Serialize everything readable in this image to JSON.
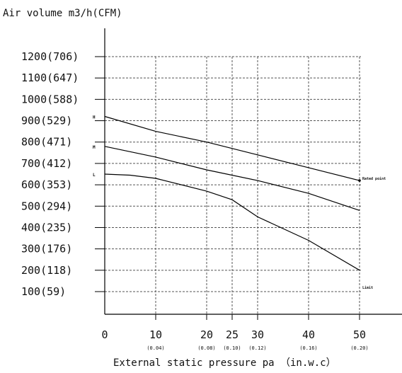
{
  "chart_data": {
    "type": "line",
    "title": "Air volume m3/h(CFM)",
    "xlabel": "External static pressure pa （in.w.c）",
    "ylabel": "",
    "x_ticks": [
      {
        "value": 0,
        "label": "0",
        "sub": ""
      },
      {
        "value": 10,
        "label": "10",
        "sub": "(0.04)"
      },
      {
        "value": 20,
        "label": "20",
        "sub": "(0.08)"
      },
      {
        "value": 25,
        "label": "25",
        "sub": "(0.10)"
      },
      {
        "value": 30,
        "label": "30",
        "sub": "(0.12)"
      },
      {
        "value": 40,
        "label": "40",
        "sub": "(0.16)"
      },
      {
        "value": 50,
        "label": "50",
        "sub": "(0.20)"
      }
    ],
    "y_ticks": [
      {
        "value": 100,
        "label": "100(59)"
      },
      {
        "value": 200,
        "label": "200(118)"
      },
      {
        "value": 300,
        "label": "300(176)"
      },
      {
        "value": 400,
        "label": "400(235)"
      },
      {
        "value": 500,
        "label": "500(294)"
      },
      {
        "value": 600,
        "label": "600(353)"
      },
      {
        "value": 700,
        "label": "700(412)"
      },
      {
        "value": 800,
        "label": "800(471)"
      },
      {
        "value": 900,
        "label": "900(529)"
      },
      {
        "value": 1000,
        "label": "1000(588)"
      },
      {
        "value": 1100,
        "label": "1100(647)"
      },
      {
        "value": 1200,
        "label": "1200(706)"
      }
    ],
    "xlim": [
      0,
      50
    ],
    "ylim": [
      0,
      1200
    ],
    "grid": true,
    "series": [
      {
        "name": "H",
        "x": [
          0,
          10,
          20,
          30,
          40,
          50
        ],
        "y": [
          920,
          850,
          800,
          740,
          680,
          620
        ]
      },
      {
        "name": "M",
        "x": [
          0,
          10,
          20,
          30,
          40,
          50
        ],
        "y": [
          780,
          730,
          670,
          620,
          560,
          480
        ]
      },
      {
        "name": "L",
        "x": [
          0,
          5,
          10,
          20,
          25,
          30,
          40,
          50
        ],
        "y": [
          650,
          645,
          630,
          570,
          530,
          450,
          340,
          200
        ]
      }
    ],
    "annotations": [
      {
        "text": "Rated point",
        "x": 50,
        "y": 620
      },
      {
        "text": "Limit",
        "x": 50,
        "y": 110
      }
    ]
  }
}
